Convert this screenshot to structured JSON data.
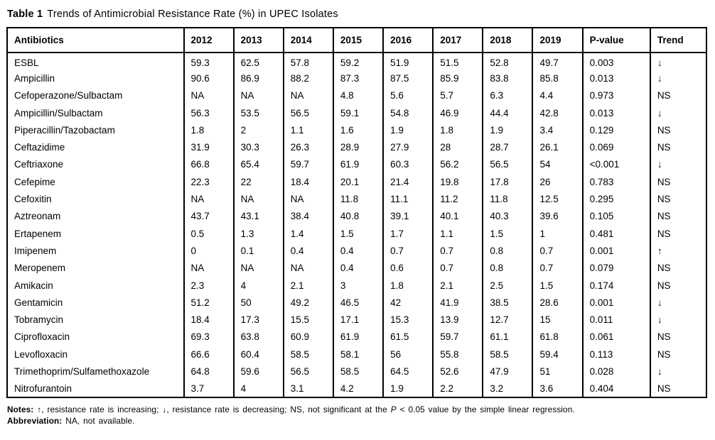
{
  "title": {
    "label": "Table 1",
    "caption": "Trends of Antimicrobial Resistance Rate (%) in UPEC Isolates"
  },
  "table": {
    "columns": [
      "Antibiotics",
      "2012",
      "2013",
      "2014",
      "2015",
      "2016",
      "2017",
      "2018",
      "2019",
      "P-value",
      "Trend"
    ],
    "rows": [
      {
        "antibiotic": "ESBL",
        "values": [
          "59.3",
          "62.5",
          "57.8",
          "59.2",
          "51.9",
          "51.5",
          "52.8",
          "49.7"
        ],
        "p_value": "0.003",
        "trend": "↓"
      },
      {
        "antibiotic": "Ampicillin",
        "values": [
          "90.6",
          "86.9",
          "88.2",
          "87.3",
          "87.5",
          "85.9",
          "83.8",
          "85.8"
        ],
        "p_value": "0.013",
        "trend": "↓"
      },
      {
        "antibiotic": "Cefoperazone/Sulbactam",
        "values": [
          "NA",
          "NA",
          "NA",
          "4.8",
          "5.6",
          "5.7",
          "6.3",
          "4.4"
        ],
        "p_value": "0.973",
        "trend": "NS"
      },
      {
        "antibiotic": "Ampicillin/Sulbactam",
        "values": [
          "56.3",
          "53.5",
          "56.5",
          "59.1",
          "54.8",
          "46.9",
          "44.4",
          "42.8"
        ],
        "p_value": "0.013",
        "trend": "↓"
      },
      {
        "antibiotic": "Piperacillin/Tazobactam",
        "values": [
          "1.8",
          "2",
          "1.1",
          "1.6",
          "1.9",
          "1.8",
          "1.9",
          "3.4"
        ],
        "p_value": "0.129",
        "trend": "NS"
      },
      {
        "antibiotic": "Ceftazidime",
        "values": [
          "31.9",
          "30.3",
          "26.3",
          "28.9",
          "27.9",
          "28",
          "28.7",
          "26.1"
        ],
        "p_value": "0.069",
        "trend": "NS"
      },
      {
        "antibiotic": "Ceftriaxone",
        "values": [
          "66.8",
          "65.4",
          "59.7",
          "61.9",
          "60.3",
          "56.2",
          "56.5",
          "54"
        ],
        "p_value": "<0.001",
        "trend": "↓"
      },
      {
        "antibiotic": "Cefepime",
        "values": [
          "22.3",
          "22",
          "18.4",
          "20.1",
          "21.4",
          "19.8",
          "17.8",
          "26"
        ],
        "p_value": "0.783",
        "trend": "NS"
      },
      {
        "antibiotic": "Cefoxitin",
        "values": [
          "NA",
          "NA",
          "NA",
          "11.8",
          "11.1",
          "11.2",
          "11.8",
          "12.5"
        ],
        "p_value": "0.295",
        "trend": "NS"
      },
      {
        "antibiotic": "Aztreonam",
        "values": [
          "43.7",
          "43.1",
          "38.4",
          "40.8",
          "39.1",
          "40.1",
          "40.3",
          "39.6"
        ],
        "p_value": "0.105",
        "trend": "NS"
      },
      {
        "antibiotic": "Ertapenem",
        "values": [
          "0.5",
          "1.3",
          "1.4",
          "1.5",
          "1.7",
          "1.1",
          "1.5",
          "1"
        ],
        "p_value": "0.481",
        "trend": "NS"
      },
      {
        "antibiotic": "Imipenem",
        "values": [
          "0",
          "0.1",
          "0.4",
          "0.4",
          "0.7",
          "0.7",
          "0.8",
          "0.7"
        ],
        "p_value": "0.001",
        "trend": "↑"
      },
      {
        "antibiotic": "Meropenem",
        "values": [
          "NA",
          "NA",
          "NA",
          "0.4",
          "0.6",
          "0.7",
          "0.8",
          "0.7"
        ],
        "p_value": "0.079",
        "trend": "NS"
      },
      {
        "antibiotic": "Amikacin",
        "values": [
          "2.3",
          "4",
          "2.1",
          "3",
          "1.8",
          "2.1",
          "2.5",
          "1.5"
        ],
        "p_value": "0.174",
        "trend": "NS"
      },
      {
        "antibiotic": "Gentamicin",
        "values": [
          "51.2",
          "50",
          "49.2",
          "46.5",
          "42",
          "41.9",
          "38.5",
          "28.6"
        ],
        "p_value": "0.001",
        "trend": "↓"
      },
      {
        "antibiotic": "Tobramycin",
        "values": [
          "18.4",
          "17.3",
          "15.5",
          "17.1",
          "15.3",
          "13.9",
          "12.7",
          "15"
        ],
        "p_value": "0.011",
        "trend": "↓"
      },
      {
        "antibiotic": "Ciprofloxacin",
        "values": [
          "69.3",
          "63.8",
          "60.9",
          "61.9",
          "61.5",
          "59.7",
          "61.1",
          "61.8"
        ],
        "p_value": "0.061",
        "trend": "NS"
      },
      {
        "antibiotic": "Levofloxacin",
        "values": [
          "66.6",
          "60.4",
          "58.5",
          "58.1",
          "56",
          "55.8",
          "58.5",
          "59.4"
        ],
        "p_value": "0.113",
        "trend": "NS"
      },
      {
        "antibiotic": "Trimethoprim/Sulfamethoxazole",
        "values": [
          "64.8",
          "59.6",
          "56.5",
          "58.5",
          "64.5",
          "52.6",
          "47.9",
          "51"
        ],
        "p_value": "0.028",
        "trend": "↓"
      },
      {
        "antibiotic": "Nitrofurantoin",
        "values": [
          "3.7",
          "4",
          "3.1",
          "4.2",
          "1.9",
          "2.2",
          "3.2",
          "3.6"
        ],
        "p_value": "0.404",
        "trend": "NS"
      }
    ]
  },
  "footer": {
    "notes_label": "Notes:",
    "notes_before_p": " ↑, resistance rate is increasing; ↓, resistance rate is decreasing; NS, not significant at the ",
    "notes_p": "P",
    "notes_after_p": " < 0.05 value by the simple linear regression.",
    "abbreviation_label": "Abbreviation:",
    "abbreviation_text": " NA, not available."
  }
}
